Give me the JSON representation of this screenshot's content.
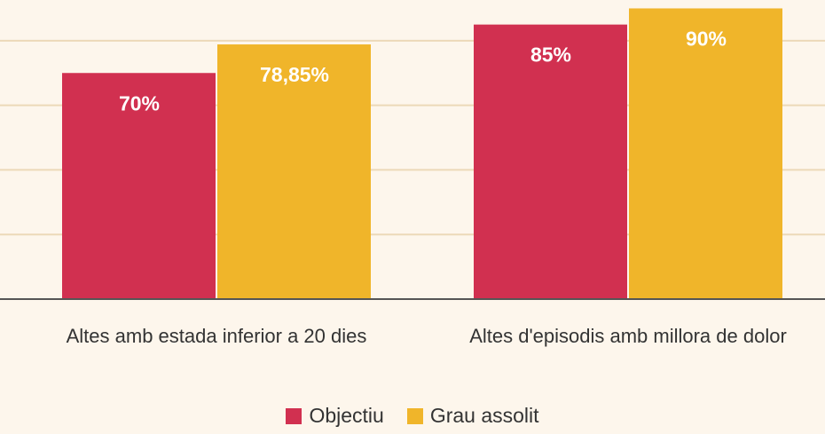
{
  "chart_data": {
    "type": "bar",
    "categories": [
      "Altes amb estada inferior a 20 dies",
      "Altes d'episodis amb millora de dolor"
    ],
    "series": [
      {
        "name": "Objectiu",
        "color": "#d13050",
        "values": [
          70,
          85
        ],
        "value_labels": [
          "70%",
          "85%"
        ]
      },
      {
        "name": "Grau assolit",
        "color": "#f0b52a",
        "values": [
          78.85,
          90
        ],
        "value_labels": [
          "78,85%",
          "90%"
        ]
      }
    ],
    "ylim": [
      0,
      92.6
    ],
    "yticks": [
      0,
      20,
      40,
      60,
      80
    ],
    "grid": true,
    "show_tick_labels": false,
    "legend": "bottom"
  }
}
